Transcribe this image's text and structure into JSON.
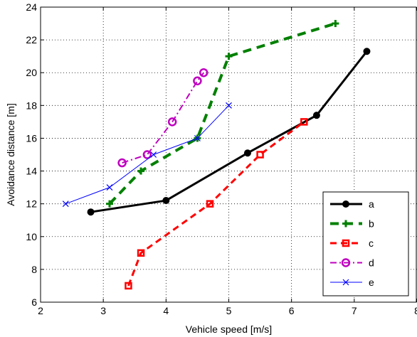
{
  "chart_data": {
    "type": "line",
    "title": "",
    "xlabel": "Vehicle speed [m/s]",
    "ylabel": "Avoidance distance [m]",
    "xlim": [
      2,
      8
    ],
    "ylim": [
      6,
      24
    ],
    "xticks": [
      2,
      3,
      4,
      5,
      6,
      7,
      8
    ],
    "yticks": [
      6,
      8,
      10,
      12,
      14,
      16,
      18,
      20,
      22,
      24
    ],
    "grid": true,
    "legend_position": "lower-right",
    "series": [
      {
        "name": "a",
        "color": "#000000",
        "linestyle": "solid",
        "marker": "filled-circle",
        "linewidth": 3,
        "x": [
          2.8,
          4.0,
          5.3,
          6.4,
          7.2
        ],
        "y": [
          11.5,
          12.2,
          15.1,
          17.4,
          21.3
        ]
      },
      {
        "name": "b",
        "color": "#008000",
        "linestyle": "dashed",
        "marker": "plus",
        "linewidth": 4,
        "x": [
          3.1,
          3.6,
          4.5,
          5.0,
          6.7
        ],
        "y": [
          12.0,
          14.0,
          16.0,
          21.0,
          23.0
        ]
      },
      {
        "name": "c",
        "color": "#ff0000",
        "linestyle": "dashed",
        "marker": "square",
        "linewidth": 3,
        "x": [
          3.4,
          3.6,
          4.7,
          5.5,
          6.2
        ],
        "y": [
          7.0,
          9.0,
          12.0,
          15.0,
          17.0
        ]
      },
      {
        "name": "d",
        "color": "#bf00bf",
        "linestyle": "dashdot",
        "marker": "circle",
        "linewidth": 2,
        "x": [
          3.3,
          3.7,
          4.1,
          4.5,
          4.6
        ],
        "y": [
          14.5,
          15.0,
          17.0,
          19.5,
          20.0
        ]
      },
      {
        "name": "e",
        "color": "#0000ff",
        "linestyle": "solid",
        "marker": "x",
        "linewidth": 1,
        "x": [
          2.4,
          3.1,
          3.8,
          4.5,
          5.0
        ],
        "y": [
          12.0,
          13.0,
          15.0,
          16.0,
          18.0
        ]
      }
    ]
  }
}
